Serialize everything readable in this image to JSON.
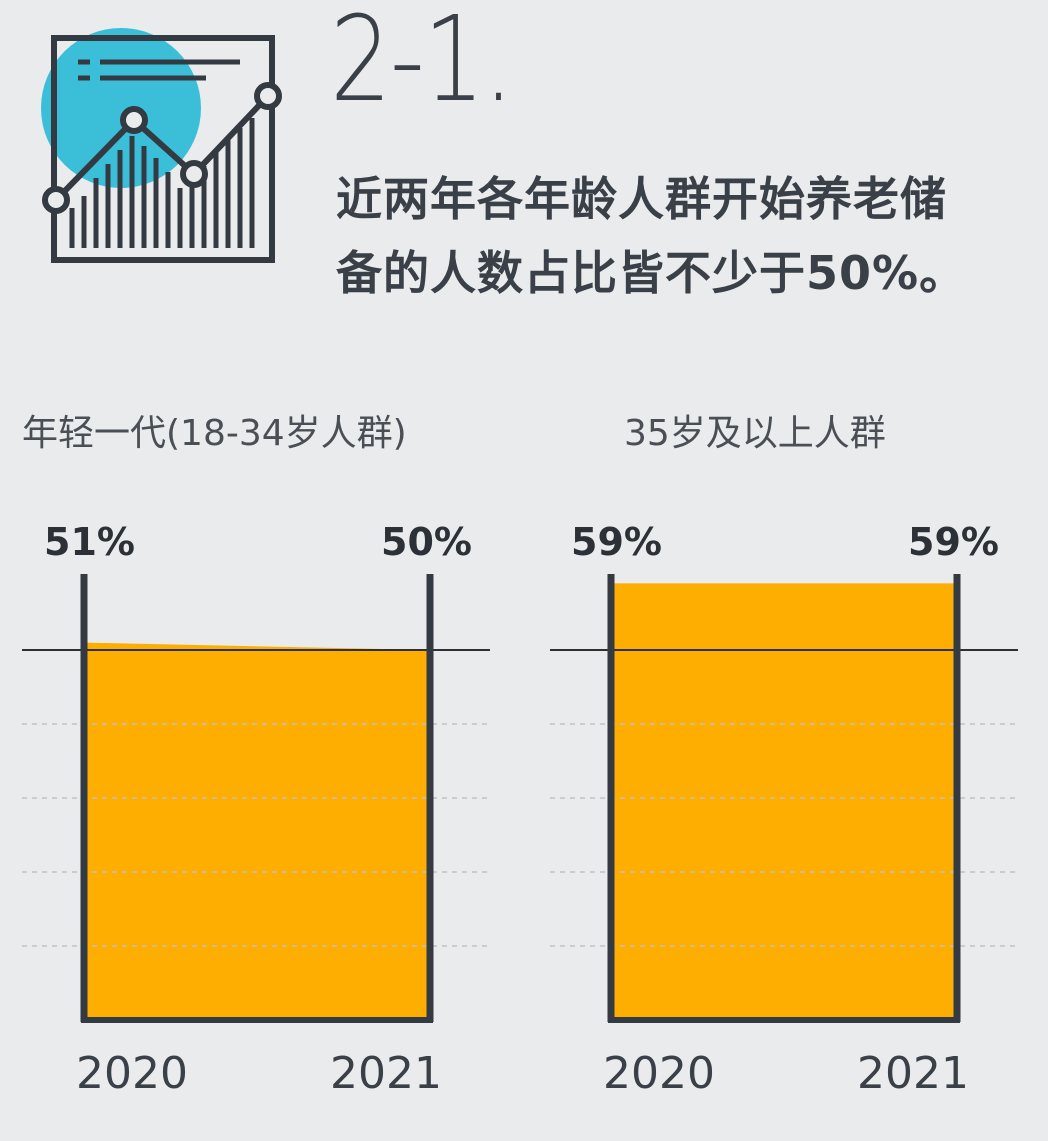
{
  "section_number": "2-1.",
  "headline_lines": [
    "近两年各年龄人群开始养老储",
    "备的人数占比皆不少于50%。"
  ],
  "icon": "line-chart-report-icon",
  "colors": {
    "fill": "#fdae00",
    "frame": "#343a42",
    "accent_circle": "#3bbfd9",
    "background": "#eaebec"
  },
  "chart_data": [
    {
      "type": "area",
      "title": "年轻一代(18-34岁人群)",
      "categories": [
        "2020",
        "2021"
      ],
      "values": [
        51,
        50
      ],
      "value_labels": [
        "51%",
        "50%"
      ],
      "ylim": [
        0,
        60
      ],
      "reference_line": 50,
      "grid": "dashed"
    },
    {
      "type": "area",
      "title": "35岁及以上人群",
      "categories": [
        "2020",
        "2021"
      ],
      "values": [
        59,
        59
      ],
      "value_labels": [
        "59%",
        "59%"
      ],
      "ylim": [
        0,
        60
      ],
      "reference_line": 50,
      "grid": "dashed"
    }
  ]
}
